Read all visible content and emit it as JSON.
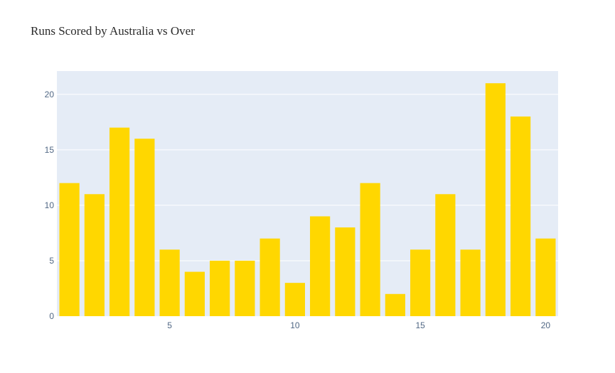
{
  "chart_data": {
    "type": "bar",
    "title": "Runs Scored by Australia vs Over",
    "xlabel": "",
    "ylabel": "",
    "categories": [
      1,
      2,
      3,
      4,
      5,
      6,
      7,
      8,
      9,
      10,
      11,
      12,
      13,
      14,
      15,
      16,
      17,
      18,
      19,
      20
    ],
    "values": [
      12,
      11,
      17,
      16,
      6,
      4,
      5,
      5,
      7,
      3,
      9,
      8,
      12,
      2,
      6,
      11,
      6,
      21,
      18,
      7
    ],
    "xlim": [
      0.5,
      20.5
    ],
    "ylim": [
      0,
      22.1
    ],
    "x_ticks": [
      5,
      10,
      15,
      20
    ],
    "y_ticks": [
      0,
      5,
      10,
      15,
      20
    ],
    "grid": true,
    "bar_color": "#FFD700",
    "plot_bgcolor": "#E5ECF6",
    "grid_color": "#FFFFFF"
  }
}
